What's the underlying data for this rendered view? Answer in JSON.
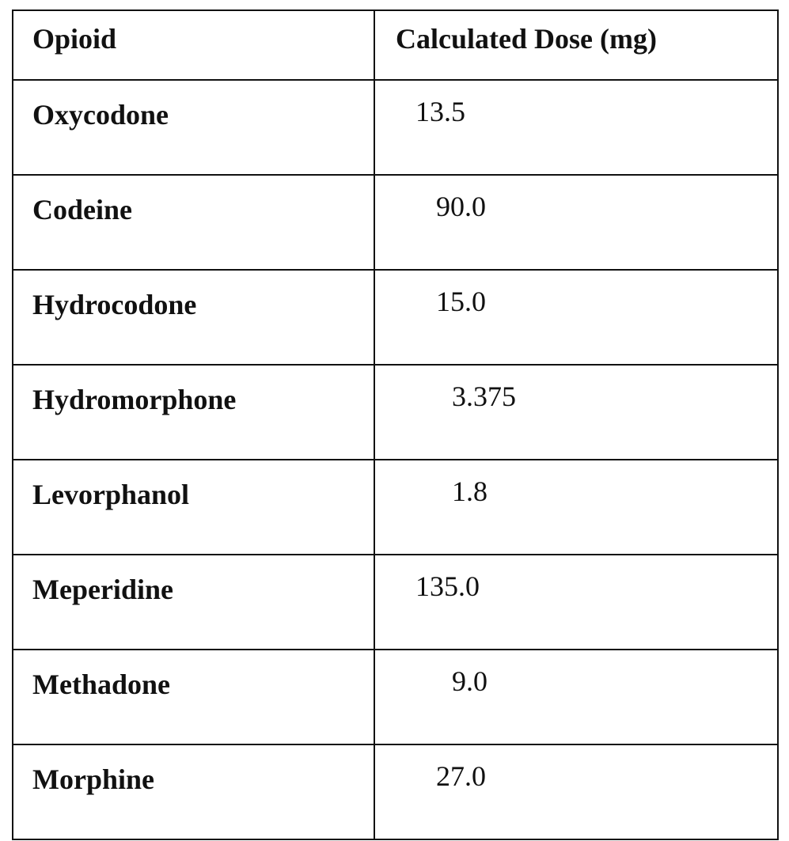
{
  "table": {
    "headers": [
      "Opioid",
      "Calculated Dose (mg)"
    ],
    "rows": [
      {
        "opioid": "Oxycodone",
        "dose": "13.5"
      },
      {
        "opioid": "Codeine",
        "dose": "90.0"
      },
      {
        "opioid": "Hydrocodone",
        "dose": "15.0"
      },
      {
        "opioid": "Hydromorphone",
        "dose": "3.375"
      },
      {
        "opioid": "Levorphanol",
        "dose": "1.8"
      },
      {
        "opioid": "Meperidine",
        "dose": "135.0"
      },
      {
        "opioid": "Methadone",
        "dose": "9.0"
      },
      {
        "opioid": "Morphine",
        "dose": "27.0"
      }
    ]
  }
}
